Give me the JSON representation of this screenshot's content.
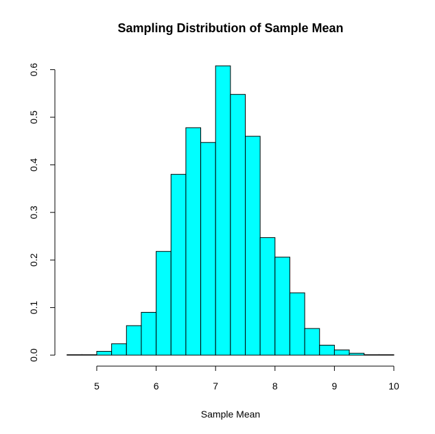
{
  "chart_data": {
    "type": "bar",
    "title": "Sampling Distribution of Sample Mean",
    "xlabel": "Sample Mean",
    "ylabel": "",
    "bar_color": "#00FFFF",
    "edge_color": "#000000",
    "bin_edges": [
      4.5,
      4.75,
      5.0,
      5.25,
      5.5,
      5.75,
      6.0,
      6.25,
      6.5,
      6.75,
      7.0,
      7.25,
      7.5,
      7.75,
      8.0,
      8.25,
      8.5,
      8.75,
      9.0,
      9.25,
      9.5,
      9.75,
      10.0
    ],
    "values": [
      0.001,
      0.001,
      0.008,
      0.024,
      0.062,
      0.09,
      0.218,
      0.38,
      0.478,
      0.447,
      0.608,
      0.548,
      0.46,
      0.247,
      0.206,
      0.131,
      0.056,
      0.021,
      0.011,
      0.004,
      0.001,
      0.001
    ],
    "xlim": [
      4.5,
      10.0
    ],
    "ylim": [
      0,
      0.6
    ],
    "x_ticks": [
      5,
      6,
      7,
      8,
      9,
      10
    ],
    "x_tick_labels": [
      "5",
      "6",
      "7",
      "8",
      "9",
      "10"
    ],
    "y_ticks": [
      0,
      0.1,
      0.2,
      0.3,
      0.4,
      0.5,
      0.6
    ],
    "y_tick_labels": [
      "0.0",
      "0.1",
      "0.2",
      "0.3",
      "0.4",
      "0.5",
      "0.6"
    ],
    "grid": false,
    "legend": "none"
  }
}
